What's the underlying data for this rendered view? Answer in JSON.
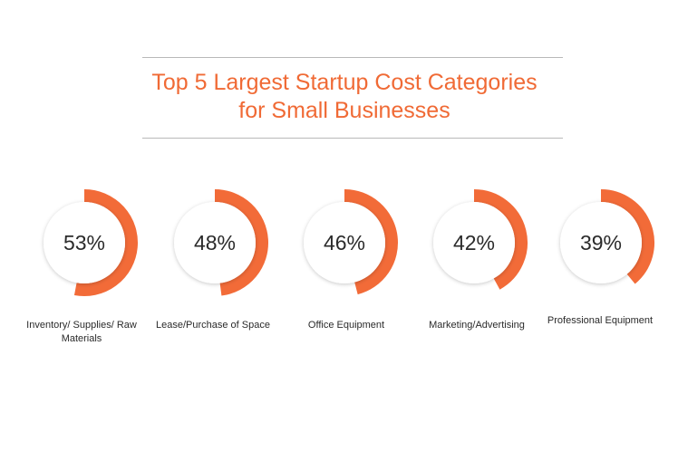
{
  "chart_data": {
    "type": "pie",
    "title_line1": "Top 5 Largest Startup Cost Categories",
    "title_line2": "for Small Businesses",
    "accent_color": "#f26b38",
    "items": [
      {
        "label": "Inventory/ Supplies/ Raw Materials",
        "value": 53,
        "value_label": "53%"
      },
      {
        "label": "Lease/Purchase of Space",
        "value": 48,
        "value_label": "48%"
      },
      {
        "label": "Office Equipment",
        "value": 46,
        "value_label": "46%"
      },
      {
        "label": "Marketing/Advertising",
        "value": 42,
        "value_label": "42%"
      },
      {
        "label": "Professional Equipment",
        "value": 39,
        "value_label": "39%"
      }
    ]
  }
}
